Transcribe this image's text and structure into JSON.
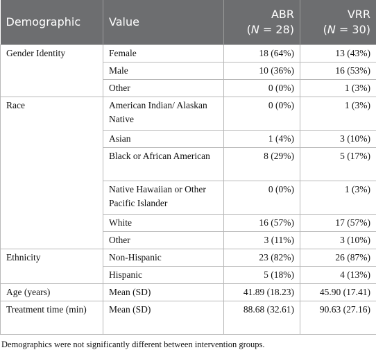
{
  "table": {
    "columns": [
      {
        "parts": [
          "Demographic"
        ]
      },
      {
        "parts": [
          "Value"
        ]
      },
      {
        "parts": [
          "ABR"
        ],
        "n_parts": [
          "(",
          "N",
          " = 28)"
        ]
      },
      {
        "parts": [
          "VRR"
        ],
        "n_parts": [
          "(",
          "N",
          " = 30)"
        ]
      }
    ],
    "groups": [
      {
        "label": "Gender Identity",
        "rows": [
          [
            "Female",
            "18 (64%)",
            "13 (43%)"
          ],
          [
            "Male",
            "10 (36%)",
            "16 (53%)"
          ],
          [
            "Other",
            "0 (0%)",
            "1 (3%)"
          ]
        ]
      },
      {
        "label": "Race",
        "rows": [
          [
            "American Indian/ Alaskan Native",
            "0 (0%)",
            "1 (3%)"
          ],
          [
            "Asian",
            "1 (4%)",
            "3 (10%)"
          ],
          [
            "Black or African American",
            "8 (29%)",
            "5 (17%)"
          ],
          [
            "Native Hawaiian or Other Pacific Islander",
            "0 (0%)",
            "1 (3%)"
          ],
          [
            "White",
            "16 (57%)",
            "17 (57%)"
          ],
          [
            "Other",
            "3 (11%)",
            "3 (10%)"
          ]
        ]
      },
      {
        "label": "Ethnicity",
        "rows": [
          [
            "Non-Hispanic",
            "23 (82%)",
            "26 (87%)"
          ],
          [
            "Hispanic",
            "5 (18%)",
            "4 (13%)"
          ]
        ]
      },
      {
        "label": "Age (years)",
        "rows": [
          [
            "Mean (SD)",
            "41.89 (18.23)",
            "45.90 (17.41)"
          ]
        ]
      },
      {
        "label": "Treatment time (min)",
        "rows": [
          [
            "Mean (SD)",
            "88.68 (32.61)",
            "90.63 (27.16)"
          ]
        ]
      }
    ],
    "footnote": "Demographics were not significantly different between intervention groups."
  }
}
